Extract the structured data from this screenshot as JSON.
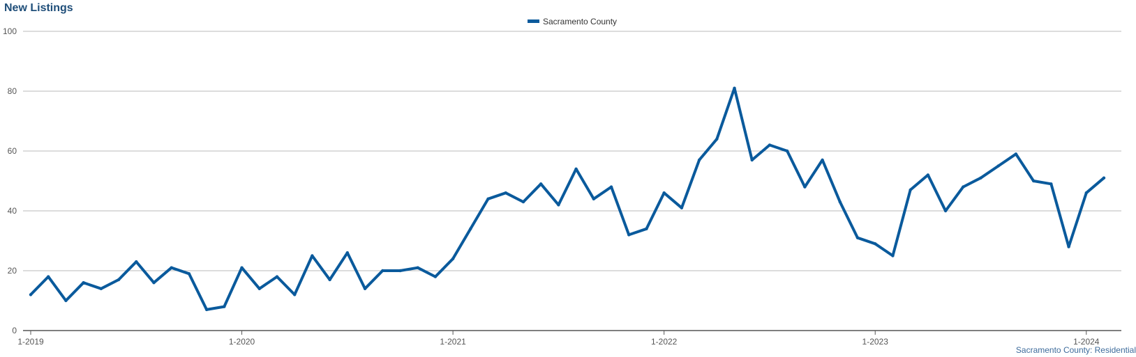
{
  "chart_data": {
    "type": "line",
    "title": "New Listings",
    "subtitle": "",
    "xlabel": "",
    "ylabel": "",
    "x_tick_labels": [
      "1-2019",
      "1-2020",
      "1-2021",
      "1-2022",
      "1-2023",
      "1-2024"
    ],
    "x": [
      "1-2019",
      "2-2019",
      "3-2019",
      "4-2019",
      "5-2019",
      "6-2019",
      "7-2019",
      "8-2019",
      "9-2019",
      "10-2019",
      "11-2019",
      "12-2019",
      "1-2020",
      "2-2020",
      "3-2020",
      "4-2020",
      "5-2020",
      "6-2020",
      "7-2020",
      "8-2020",
      "9-2020",
      "10-2020",
      "11-2020",
      "12-2020",
      "1-2021",
      "2-2021",
      "3-2021",
      "4-2021",
      "5-2021",
      "6-2021",
      "7-2021",
      "8-2021",
      "9-2021",
      "10-2021",
      "11-2021",
      "12-2021",
      "1-2022",
      "2-2022",
      "3-2022",
      "4-2022",
      "5-2022",
      "6-2022",
      "7-2022",
      "8-2022",
      "9-2022",
      "10-2022",
      "11-2022",
      "12-2022",
      "1-2023",
      "2-2023",
      "3-2023",
      "4-2023",
      "5-2023",
      "6-2023",
      "7-2023",
      "8-2023",
      "9-2023",
      "10-2023",
      "11-2023",
      "12-2023",
      "1-2024",
      "2-2024"
    ],
    "ylim": [
      0,
      100
    ],
    "y_ticks": [
      0,
      20,
      40,
      60,
      80,
      100
    ],
    "grid": true,
    "legend_position": "top-center",
    "series": [
      {
        "name": "Sacramento County",
        "color": "#0a5a9c",
        "values": [
          12,
          18,
          10,
          16,
          14,
          17,
          23,
          16,
          21,
          19,
          7,
          8,
          21,
          14,
          18,
          12,
          25,
          17,
          26,
          14,
          20,
          20,
          21,
          18,
          24,
          34,
          44,
          46,
          43,
          49,
          42,
          54,
          44,
          48,
          32,
          34,
          46,
          41,
          57,
          64,
          81,
          57,
          62,
          60,
          48,
          57,
          43,
          31,
          29,
          25,
          47,
          52,
          40,
          48,
          51,
          55,
          59,
          50,
          49,
          28,
          46,
          51
        ]
      }
    ]
  },
  "footer": "Sacramento County: Residential"
}
